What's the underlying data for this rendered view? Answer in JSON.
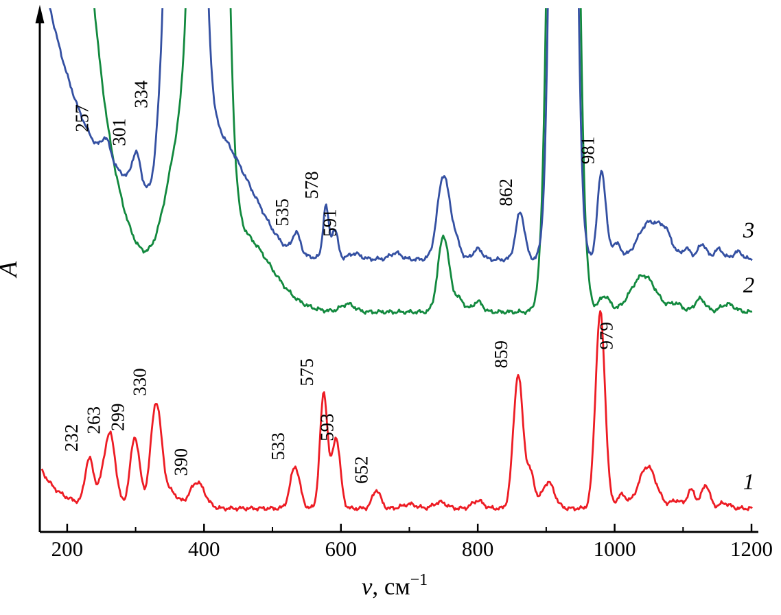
{
  "figure": {
    "background": "#ffffff",
    "axis_color": "#000000"
  },
  "chart_data": {
    "type": "line",
    "title": "",
    "xlabel": {
      "prefix": "ν",
      "rest": ", см",
      "superscript": "−1"
    },
    "ylabel": "A",
    "x_range": [
      160,
      1205
    ],
    "x_ticks": [
      200,
      400,
      600,
      800,
      1000,
      1200
    ],
    "x_minor_ticks": [
      300,
      500,
      700,
      900,
      1100
    ],
    "grid": false,
    "legend_note": "curve numbers at right edge: 1 = red, 2 = green, 3 = blue",
    "series": [
      {
        "name": "1",
        "color": "#ed1c24",
        "baseline": 4.5,
        "left_edge": {
          "amp": 8,
          "decay": 30
        },
        "peaks": [
          [
            232,
            8.5,
            6
          ],
          [
            250,
            3,
            9
          ],
          [
            263,
            13,
            8
          ],
          [
            299,
            13.5,
            7
          ],
          [
            330,
            20,
            8
          ],
          [
            352,
            3,
            10
          ],
          [
            390,
            5,
            11
          ],
          [
            533,
            8,
            7
          ],
          [
            575,
            22,
            5.5
          ],
          [
            593,
            13.5,
            6
          ],
          [
            652,
            3.5,
            6
          ],
          [
            700,
            0.8,
            10
          ],
          [
            745,
            1.2,
            9
          ],
          [
            800,
            1.5,
            8
          ],
          [
            859,
            25.5,
            7
          ],
          [
            877,
            6.5,
            6
          ],
          [
            903,
            5,
            9
          ],
          [
            979,
            37.5,
            7
          ],
          [
            1010,
            2.5,
            7
          ],
          [
            1048,
            8,
            13
          ],
          [
            1090,
            1.5,
            8
          ],
          [
            1112,
            3.5,
            6
          ],
          [
            1133,
            4.5,
            6
          ],
          [
            1160,
            1,
            8
          ]
        ],
        "peak_labels": [
          {
            "text": "232",
            "v": 232,
            "dx": -17,
            "dy": 0
          },
          {
            "text": "263",
            "v": 263,
            "dx": -15,
            "dy": 10
          },
          {
            "text": "299",
            "v": 299,
            "dx": -16,
            "dy": 0
          },
          {
            "text": "330",
            "v": 330,
            "dx": -15,
            "dy": 0
          },
          {
            "text": "390",
            "v": 390,
            "dx": -15,
            "dy": 0
          },
          {
            "text": "533",
            "v": 533,
            "dx": -16,
            "dy": 0
          },
          {
            "text": "575",
            "v": 575,
            "dx": -16,
            "dy": 0
          },
          {
            "text": "593",
            "v": 593,
            "dx": -4,
            "dy": 15
          },
          {
            "text": "652",
            "v": 652,
            "dx": -13,
            "dy": 0
          },
          {
            "text": "859",
            "v": 859,
            "dx": -16,
            "dy": 0
          },
          {
            "text": "979",
            "v": 979,
            "dx": 18,
            "dy": 64
          }
        ],
        "label_v": 1190,
        "seed": 1
      },
      {
        "name": "2",
        "color": "#12893e",
        "baseline": 42,
        "left_edge": {
          "amp": 428,
          "decay": 40
        },
        "peaks": [
          [
            370,
            30,
            25
          ],
          [
            408,
            350,
            15
          ],
          [
            450,
            15,
            45
          ],
          [
            610,
            1.5,
            10
          ],
          [
            750,
            14.5,
            8
          ],
          [
            772,
            2.5,
            8
          ],
          [
            800,
            2,
            7
          ],
          [
            925,
            400,
            13
          ],
          [
            985,
            3,
            8
          ],
          [
            1042,
            7,
            18
          ],
          [
            1090,
            1.5,
            9
          ],
          [
            1125,
            2.5,
            8
          ],
          [
            1165,
            1.5,
            10
          ]
        ],
        "peak_labels": [],
        "label_v": 1190,
        "seed": 2
      },
      {
        "name": "3",
        "color": "#3450a2",
        "baseline": 52,
        "left_edge": {
          "amp": 58,
          "decay": 80
        },
        "peaks": [
          [
            257,
            4,
            7
          ],
          [
            300,
            4,
            35
          ],
          [
            301,
            6,
            6
          ],
          [
            334,
            5,
            6
          ],
          [
            372,
            350,
            15
          ],
          [
            415,
            22,
            42
          ],
          [
            480,
            3,
            25
          ],
          [
            535,
            4,
            6
          ],
          [
            578,
            10,
            4
          ],
          [
            591,
            5.5,
            4.5
          ],
          [
            620,
            1,
            8
          ],
          [
            680,
            1.2,
            8
          ],
          [
            750,
            16,
            9
          ],
          [
            768,
            3,
            7
          ],
          [
            800,
            2,
            7
          ],
          [
            862,
            9,
            6.5
          ],
          [
            925,
            400,
            11
          ],
          [
            981,
            17,
            6
          ],
          [
            1002,
            3,
            7
          ],
          [
            1050,
            7,
            16
          ],
          [
            1075,
            4,
            10
          ],
          [
            1105,
            2,
            7
          ],
          [
            1128,
            3,
            6
          ],
          [
            1152,
            2,
            7
          ],
          [
            1180,
            1.5,
            7
          ]
        ],
        "peak_labels": [
          {
            "text": "257",
            "v": 257,
            "dx": -26,
            "dy": 0
          },
          {
            "text": "301",
            "v": 301,
            "dx": -16,
            "dy": 0
          },
          {
            "text": "334",
            "v": 334,
            "dx": -17,
            "dy": 30
          },
          {
            "text": "535",
            "v": 535,
            "dx": -12,
            "dy": 0
          },
          {
            "text": "578",
            "v": 578,
            "dx": -12,
            "dy": 0
          },
          {
            "text": "591",
            "v": 591,
            "dx": 2,
            "dy": 20
          },
          {
            "text": "862",
            "v": 862,
            "dx": -12,
            "dy": 0
          },
          {
            "text": "981",
            "v": 981,
            "dx": -11,
            "dy": 0
          }
        ],
        "label_v": 1190,
        "seed": 3
      }
    ]
  }
}
